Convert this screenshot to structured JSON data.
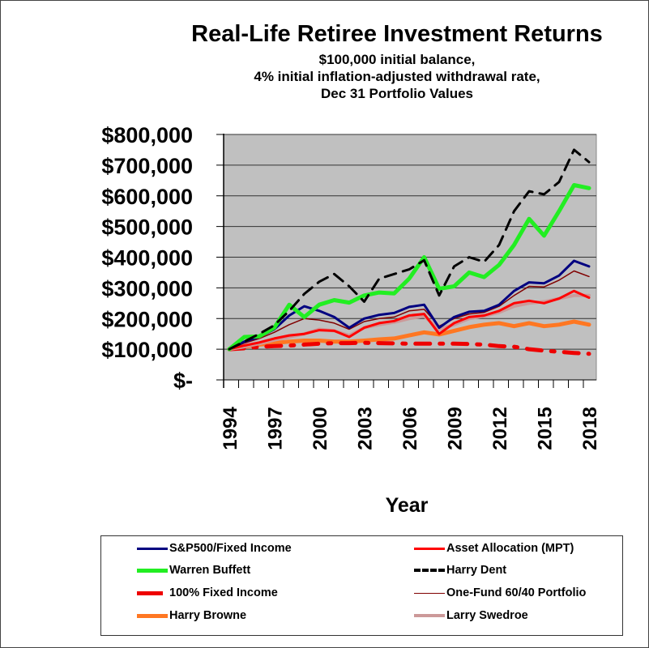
{
  "chart_data": {
    "type": "line",
    "title": "Real-Life Retiree Investment Returns",
    "subtitle_lines": [
      "$100,000 initial balance,",
      "4% initial inflation-adjusted withdrawal rate,",
      "Dec 31 Portfolio Values"
    ],
    "xlabel": "Year",
    "ylabel": "",
    "ylim": [
      0,
      800000
    ],
    "y_ticks": [
      0,
      100000,
      200000,
      300000,
      400000,
      500000,
      600000,
      700000,
      800000
    ],
    "y_tick_labels": [
      "$-",
      "$100,000",
      "$200,000",
      "$300,000",
      "$400,000",
      "$500,000",
      "$600,000",
      "$700,000",
      "$800,000"
    ],
    "x": [
      1994,
      1995,
      1996,
      1997,
      1998,
      1999,
      2000,
      2001,
      2002,
      2003,
      2004,
      2005,
      2006,
      2007,
      2008,
      2009,
      2010,
      2011,
      2012,
      2013,
      2014,
      2015,
      2016,
      2017,
      2018
    ],
    "x_tick_labels": [
      "1994",
      "1997",
      "2000",
      "2003",
      "2006",
      "2009",
      "2012",
      "2015",
      "2018"
    ],
    "grid": true,
    "legend_position": "bottom",
    "series": [
      {
        "name": "S&P500/Fixed Income",
        "color": "#000080",
        "width": 3,
        "dash": "",
        "values": [
          100000,
          125000,
          140000,
          165000,
          210000,
          240000,
          225000,
          205000,
          170000,
          200000,
          212000,
          218000,
          238000,
          245000,
          170000,
          205000,
          222000,
          225000,
          245000,
          290000,
          318000,
          315000,
          340000,
          388000,
          370000
        ]
      },
      {
        "name": "Asset Allocation (MPT)",
        "color": "#ff0000",
        "width": 3,
        "dash": "",
        "values": [
          100000,
          112000,
          122000,
          135000,
          145000,
          150000,
          162000,
          160000,
          140000,
          170000,
          185000,
          192000,
          210000,
          215000,
          150000,
          185000,
          205000,
          210000,
          225000,
          250000,
          258000,
          250000,
          265000,
          290000,
          268000
        ]
      },
      {
        "name": "Warren Buffett",
        "color": "#22ee22",
        "width": 5,
        "dash": "",
        "values": [
          100000,
          140000,
          142000,
          170000,
          245000,
          205000,
          245000,
          260000,
          252000,
          275000,
          285000,
          282000,
          330000,
          400000,
          297000,
          305000,
          350000,
          335000,
          375000,
          440000,
          525000,
          470000,
          550000,
          635000,
          625000
        ]
      },
      {
        "name": "Harry Dent",
        "color": "#000000",
        "width": 3,
        "dash": "14,9",
        "values": [
          100000,
          125000,
          150000,
          178000,
          225000,
          280000,
          320000,
          345000,
          305000,
          255000,
          330000,
          345000,
          360000,
          390000,
          275000,
          370000,
          400000,
          385000,
          440000,
          550000,
          615000,
          605000,
          645000,
          750000,
          710000
        ]
      },
      {
        "name": "100% Fixed Income",
        "color": "#ee0000",
        "width": 5,
        "dash": "18,12,4,12",
        "values": [
          100000,
          103000,
          108000,
          110000,
          112000,
          115000,
          118000,
          120000,
          120000,
          121000,
          120000,
          119000,
          118000,
          118000,
          118000,
          118000,
          117000,
          115000,
          110000,
          108000,
          100000,
          95000,
          92000,
          88000,
          85000
        ]
      },
      {
        "name": "One-Fund 60/40 Portfolio",
        "color": "#800000",
        "width": 1.5,
        "dash": "",
        "values": [
          100000,
          120000,
          135000,
          155000,
          180000,
          200000,
          195000,
          185000,
          165000,
          190000,
          200000,
          205000,
          225000,
          230000,
          175000,
          200000,
          215000,
          220000,
          240000,
          275000,
          305000,
          303000,
          325000,
          355000,
          337000
        ]
      },
      {
        "name": "Harry Browne",
        "color": "#ff7722",
        "width": 5,
        "dash": "",
        "values": [
          100000,
          108000,
          115000,
          120000,
          125000,
          128000,
          128000,
          125000,
          125000,
          128000,
          132000,
          135000,
          145000,
          155000,
          148000,
          160000,
          172000,
          180000,
          185000,
          175000,
          185000,
          175000,
          180000,
          190000,
          180000
        ]
      },
      {
        "name": "Larry Swedroe",
        "color": "#cc9999",
        "width": 4,
        "dash": "",
        "values": [
          100000,
          108000,
          118000,
          130000,
          140000,
          150000,
          165000,
          160000,
          145000,
          170000,
          180000,
          188000,
          200000,
          208000,
          165000,
          180000,
          200000,
          208000,
          220000,
          240000,
          250000,
          255000,
          265000,
          275000,
          275000
        ]
      }
    ]
  },
  "legend": {
    "items": [
      {
        "label": "S&P500/Fixed Income"
      },
      {
        "label": "Asset Allocation (MPT)"
      },
      {
        "label": "Warren Buffett"
      },
      {
        "label": "Harry Dent"
      },
      {
        "label": "100% Fixed Income"
      },
      {
        "label": "One-Fund 60/40 Portfolio"
      },
      {
        "label": "Harry Browne"
      },
      {
        "label": "Larry Swedroe"
      }
    ]
  },
  "colors": {
    "plot_background": "#c0c0c0",
    "gridline": "#333333",
    "axis": "#000000"
  }
}
